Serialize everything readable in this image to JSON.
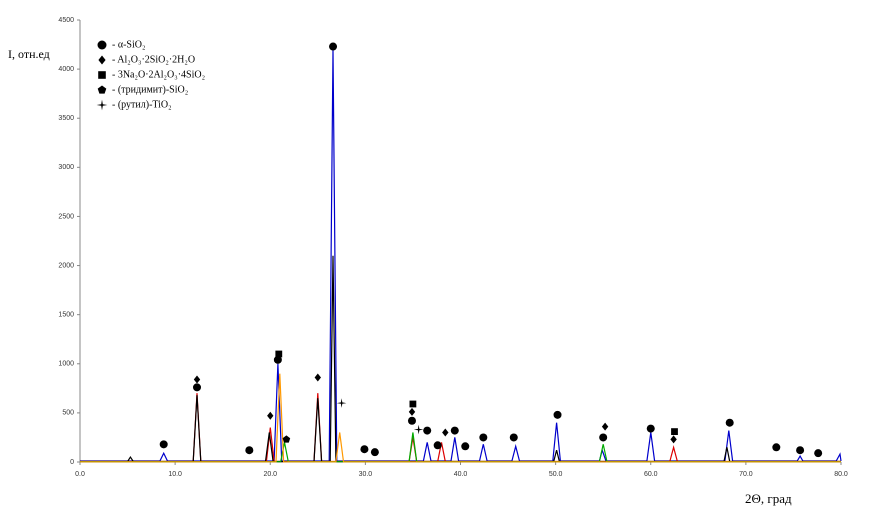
{
  "chart_data": {
    "type": "line",
    "y_label": "I, отн.ед",
    "x_label": "2Θ, град",
    "xlim": [
      0,
      80
    ],
    "xticks": [
      {
        "value": 0,
        "label": "0.0"
      },
      {
        "value": 10,
        "label": "10.0"
      },
      {
        "value": 20,
        "label": "20.0"
      },
      {
        "value": 30,
        "label": "30.0"
      },
      {
        "value": 40,
        "label": "40.0"
      },
      {
        "value": 50,
        "label": "50.0"
      },
      {
        "value": 60,
        "label": "60.0"
      },
      {
        "value": 70,
        "label": "70.0"
      },
      {
        "value": 80,
        "label": "80.0"
      }
    ],
    "ylim": [
      0,
      4500
    ],
    "yticks": [
      0,
      500,
      1000,
      1500,
      2000,
      2500,
      3000,
      3500,
      4000,
      4500
    ],
    "series": [
      {
        "color": "#0000cc",
        "x": [
          0,
          8.4,
          8.8,
          9.2,
          20.4,
          20.8,
          21.2,
          26.2,
          26.6,
          27.0,
          36.1,
          36.5,
          36.9,
          39.0,
          39.4,
          39.8,
          42.0,
          42.4,
          42.8,
          45.4,
          45.8,
          46.2,
          49.7,
          50.1,
          50.5,
          54.6,
          54.9,
          55.3,
          59.6,
          60.0,
          60.4,
          67.8,
          68.2,
          68.6,
          75.4,
          75.7,
          76.0,
          79.5,
          79.9,
          80
        ],
        "values": [
          10,
          10,
          90,
          10,
          10,
          1000,
          10,
          10,
          4200,
          10,
          10,
          200,
          10,
          10,
          250,
          10,
          10,
          180,
          10,
          10,
          160,
          10,
          10,
          400,
          10,
          10,
          120,
          10,
          10,
          300,
          10,
          10,
          320,
          10,
          10,
          60,
          10,
          10,
          80,
          10
        ]
      },
      {
        "color": "#dd0000",
        "x": [
          0,
          11.9,
          12.3,
          12.7,
          19.6,
          20.0,
          20.4,
          24.6,
          25.0,
          25.4,
          34.6,
          35.0,
          35.4,
          37.6,
          38.0,
          38.4,
          62.0,
          62.4,
          62.8,
          80
        ],
        "values": [
          5,
          5,
          700,
          5,
          5,
          350,
          5,
          5,
          700,
          5,
          5,
          250,
          5,
          5,
          200,
          5,
          5,
          150,
          5,
          5
        ]
      },
      {
        "color": "#000000",
        "x": [
          0,
          5.0,
          5.3,
          5.6,
          11.9,
          12.3,
          12.7,
          19.5,
          19.9,
          20.3,
          24.6,
          25.0,
          25.4,
          26.3,
          26.6,
          26.9,
          49.8,
          50.1,
          50.4,
          67.7,
          68.0,
          68.3,
          80
        ],
        "values": [
          5,
          5,
          50,
          5,
          5,
          680,
          5,
          5,
          300,
          5,
          5,
          650,
          5,
          5,
          2100,
          5,
          5,
          120,
          5,
          5,
          150,
          5,
          5
        ]
      },
      {
        "color": "#00aa00",
        "x": [
          0,
          21.1,
          21.5,
          21.9,
          34.6,
          35.0,
          35.4,
          54.6,
          55.0,
          55.4,
          80
        ],
        "values": [
          3,
          3,
          200,
          3,
          3,
          300,
          3,
          3,
          180,
          3,
          3
        ]
      },
      {
        "color": "#ff9900",
        "x": [
          0,
          20.6,
          21.0,
          21.4,
          26.9,
          27.3,
          27.7,
          80
        ],
        "values": [
          2,
          2,
          900,
          2,
          2,
          300,
          2,
          2
        ]
      }
    ],
    "phases": [
      {
        "name": "- α-SiO₂",
        "symbol": "circle",
        "x": [
          8.8,
          12.3,
          17.8,
          20.8,
          26.6,
          29.9,
          31.0,
          34.9,
          36.5,
          37.6,
          39.4,
          40.5,
          42.4,
          45.6,
          50.2,
          55.0,
          60.0,
          68.3,
          73.2,
          75.7,
          77.6
        ],
        "values": [
          180,
          760,
          120,
          1040,
          4230,
          130,
          100,
          420,
          320,
          170,
          320,
          160,
          250,
          250,
          480,
          250,
          340,
          400,
          150,
          120,
          90
        ]
      },
      {
        "name": "- Al₂O₃·2SiO₂·2H₂O",
        "symbol": "diamond",
        "x": [
          12.3,
          20.0,
          25.0,
          34.9,
          38.4,
          55.2,
          62.4
        ],
        "values": [
          840,
          470,
          860,
          510,
          300,
          360,
          230
        ]
      },
      {
        "name": "- 3Na₂O·2Al₂O₃·4SiO₂",
        "symbol": "square",
        "x": [
          20.9,
          35.0,
          62.5
        ],
        "values": [
          1100,
          590,
          310
        ]
      },
      {
        "name": "- (тридимит)-SiO₂",
        "symbol": "pentagon",
        "x": [
          21.7
        ],
        "values": [
          230
        ]
      },
      {
        "name": "- (рутил)-TiO₂",
        "symbol": "star",
        "x": [
          27.5,
          35.6
        ],
        "values": [
          600,
          330
        ]
      }
    ]
  }
}
